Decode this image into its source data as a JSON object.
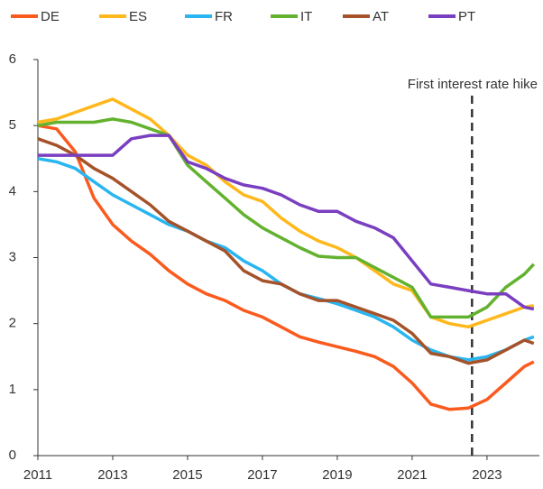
{
  "chart_data": {
    "type": "line",
    "x": [
      2011,
      2011.5,
      2012,
      2012.5,
      2013,
      2013.5,
      2014,
      2014.5,
      2015,
      2015.5,
      2016,
      2016.5,
      2017,
      2017.5,
      2018,
      2018.5,
      2019,
      2019.5,
      2020,
      2020.5,
      2021,
      2021.5,
      2022,
      2022.5,
      2023,
      2023.5,
      2024,
      2024.25
    ],
    "series": [
      {
        "name": "DE",
        "color": "#fa5a1e",
        "values": [
          5.0,
          4.95,
          4.6,
          3.9,
          3.5,
          3.25,
          3.05,
          2.8,
          2.6,
          2.45,
          2.35,
          2.2,
          2.1,
          1.95,
          1.8,
          1.72,
          1.65,
          1.58,
          1.5,
          1.35,
          1.1,
          0.78,
          0.7,
          0.72,
          0.85,
          1.1,
          1.35,
          1.42
        ]
      },
      {
        "name": "ES",
        "color": "#ffb81c",
        "values": [
          5.05,
          5.1,
          5.2,
          5.3,
          5.4,
          5.25,
          5.1,
          4.85,
          4.55,
          4.4,
          4.15,
          3.95,
          3.85,
          3.6,
          3.4,
          3.25,
          3.15,
          3.0,
          2.8,
          2.6,
          2.5,
          2.1,
          2.0,
          1.95,
          2.05,
          2.15,
          2.25,
          2.27
        ]
      },
      {
        "name": "FR",
        "color": "#29b5f0",
        "values": [
          4.5,
          4.45,
          4.35,
          4.15,
          3.95,
          3.8,
          3.65,
          3.5,
          3.4,
          3.25,
          3.15,
          2.95,
          2.8,
          2.6,
          2.45,
          2.38,
          2.3,
          2.2,
          2.1,
          1.95,
          1.75,
          1.6,
          1.5,
          1.45,
          1.5,
          1.6,
          1.75,
          1.8
        ]
      },
      {
        "name": "IT",
        "color": "#63b22f",
        "values": [
          5.0,
          5.05,
          5.05,
          5.05,
          5.1,
          5.05,
          4.95,
          4.85,
          4.4,
          4.15,
          3.9,
          3.65,
          3.45,
          3.3,
          3.15,
          3.02,
          3.0,
          3.0,
          2.85,
          2.7,
          2.55,
          2.1,
          2.1,
          2.1,
          2.25,
          2.55,
          2.75,
          2.9
        ]
      },
      {
        "name": "AT",
        "color": "#a5522a",
        "values": [
          4.8,
          4.7,
          4.55,
          4.35,
          4.2,
          4.0,
          3.8,
          3.55,
          3.4,
          3.25,
          3.1,
          2.8,
          2.65,
          2.6,
          2.45,
          2.35,
          2.35,
          2.25,
          2.15,
          2.05,
          1.85,
          1.55,
          1.5,
          1.4,
          1.45,
          1.6,
          1.75,
          1.7
        ]
      },
      {
        "name": "PT",
        "color": "#7a3fc0",
        "values": [
          4.55,
          4.55,
          4.55,
          4.55,
          4.55,
          4.8,
          4.85,
          4.85,
          4.45,
          4.35,
          4.2,
          4.1,
          4.05,
          3.95,
          3.8,
          3.7,
          3.7,
          3.55,
          3.45,
          3.3,
          2.95,
          2.6,
          2.55,
          2.5,
          2.45,
          2.45,
          2.25,
          2.22
        ]
      }
    ],
    "xlim": [
      2011,
      2024.4
    ],
    "xticks": [
      2011,
      2013,
      2015,
      2017,
      2019,
      2021,
      2023
    ],
    "ylim": [
      0,
      6
    ],
    "yticks": [
      0,
      1,
      2,
      3,
      4,
      5,
      6
    ],
    "annotations": [
      {
        "text": "First interest rate hike",
        "x": 2022.6
      }
    ]
  }
}
